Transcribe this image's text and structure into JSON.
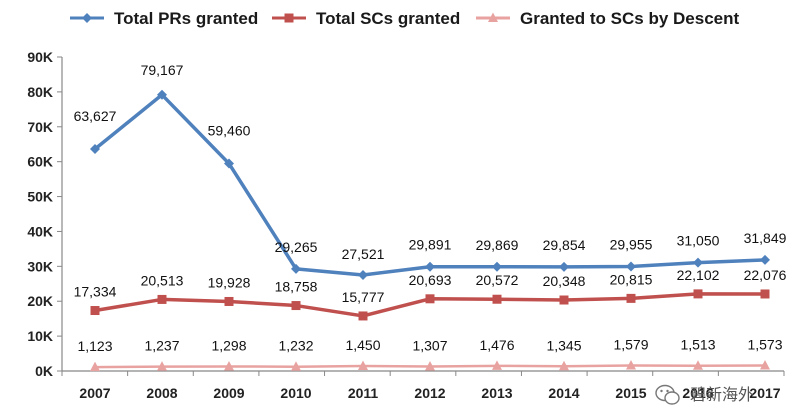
{
  "chart_data": {
    "type": "line",
    "title": "",
    "xlabel": "",
    "ylabel": "",
    "categories": [
      "2007",
      "2008",
      "2009",
      "2010",
      "2011",
      "2012",
      "2013",
      "2014",
      "2015",
      "2016",
      "2017"
    ],
    "ylim": [
      0,
      90000
    ],
    "yticks": [
      0,
      10000,
      20000,
      30000,
      40000,
      50000,
      60000,
      70000,
      80000,
      90000
    ],
    "ytick_labels": [
      "0K",
      "10K",
      "20K",
      "30K",
      "40K",
      "50K",
      "60K",
      "70K",
      "80K",
      "90K"
    ],
    "grid": false,
    "legend_position": "top",
    "series": [
      {
        "name": "Total PRs granted",
        "color": "#4f81bd",
        "marker": "diamond",
        "values": [
          63627,
          79167,
          59460,
          29265,
          27521,
          29891,
          29869,
          29854,
          29955,
          31050,
          31849
        ],
        "labels": [
          "63,627",
          "79,167",
          "59,460",
          "29,265",
          "27,521",
          "29,891",
          "29,869",
          "29,854",
          "29,955",
          "31,050",
          "31,849"
        ]
      },
      {
        "name": "Total SCs granted",
        "color": "#c0504d",
        "marker": "square",
        "values": [
          17334,
          20513,
          19928,
          18758,
          15777,
          20693,
          20572,
          20348,
          20815,
          22102,
          22076
        ],
        "labels": [
          "17,334",
          "20,513",
          "19,928",
          "18,758",
          "15,777",
          "20,693",
          "20,572",
          "20,348",
          "20,815",
          "22,102",
          "22,076"
        ]
      },
      {
        "name": "Granted to SCs by Descent",
        "color": "#e8a3a1",
        "marker": "triangle",
        "values": [
          1123,
          1237,
          1298,
          1232,
          1450,
          1307,
          1476,
          1345,
          1579,
          1513,
          1573
        ],
        "labels": [
          "1,123",
          "1,237",
          "1,298",
          "1,232",
          "1,450",
          "1,307",
          "1,476",
          "1,345",
          "1,579",
          "1,513",
          "1,573"
        ]
      }
    ]
  },
  "watermark": {
    "text": "碧新海外",
    "icon": "wechat-icon"
  }
}
